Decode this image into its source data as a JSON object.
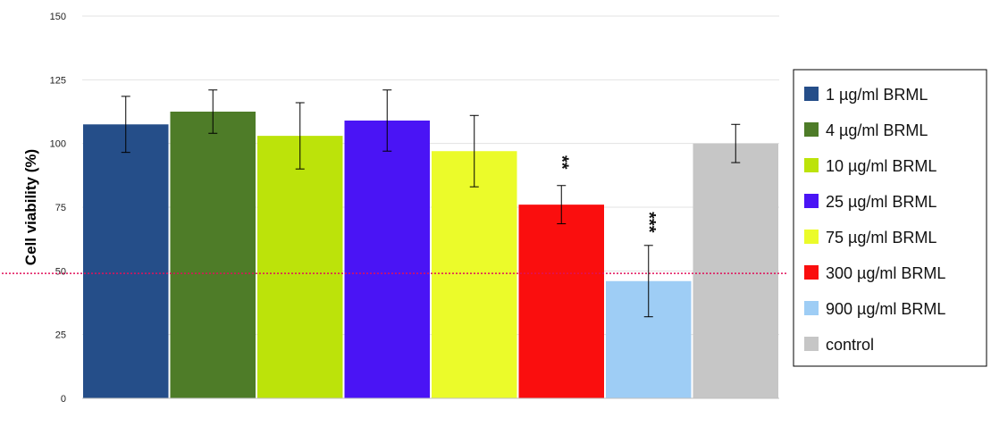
{
  "chart_data": {
    "type": "bar",
    "ylabel": "Cell viability (%)",
    "xlabel": "",
    "ylim": [
      0,
      150
    ],
    "yticks": [
      0,
      25,
      50,
      75,
      100,
      125,
      150
    ],
    "grid": true,
    "legend_position": "right",
    "reference_line": {
      "value": 49,
      "color": "#e0105a",
      "style": "dotted"
    },
    "series": [
      {
        "name": "1 µg/ml BRML",
        "value": 107.5,
        "error": 11,
        "color": "#254e89",
        "significance": ""
      },
      {
        "name": "4 µg/ml BRML",
        "value": 112.5,
        "error": 8.5,
        "color": "#4e7c28",
        "significance": ""
      },
      {
        "name": "10 µg/ml BRML",
        "value": 103,
        "error": 13,
        "color": "#bce30a",
        "significance": ""
      },
      {
        "name": "25 µg/ml BRML",
        "value": 109,
        "error": 12,
        "color": "#4a14f5",
        "significance": ""
      },
      {
        "name": "75 µg/ml BRML",
        "value": 97,
        "error": 14,
        "color": "#ebfb2a",
        "significance": ""
      },
      {
        "name": "300 µg/ml BRML",
        "value": 76,
        "error": 7.5,
        "color": "#fa0e0e",
        "significance": "**"
      },
      {
        "name": "900 µg/ml BRML",
        "value": 46,
        "error": 14,
        "color": "#9ecdf5",
        "significance": "***"
      },
      {
        "name": "control",
        "value": 100,
        "error": 7.5,
        "color": "#c6c6c6",
        "significance": ""
      }
    ]
  }
}
